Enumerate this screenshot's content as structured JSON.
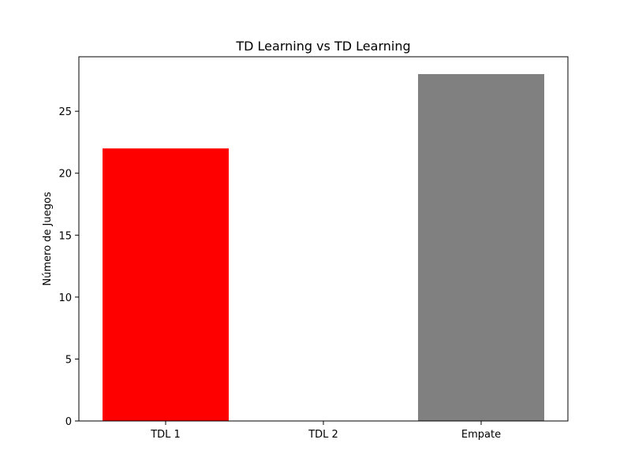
{
  "chart_data": {
    "type": "bar",
    "title": "TD Learning vs TD Learning",
    "xlabel": "",
    "ylabel": "Número de Juegos",
    "categories": [
      "TDL 1",
      "TDL 2",
      "Empate"
    ],
    "values": [
      22,
      0,
      28
    ],
    "colors": [
      "#ff0000",
      "#0000ff",
      "#808080"
    ],
    "ylim": [
      0,
      29.4
    ],
    "yticks": [
      0,
      5,
      10,
      15,
      20,
      25
    ],
    "grid": false,
    "legend": "none"
  }
}
